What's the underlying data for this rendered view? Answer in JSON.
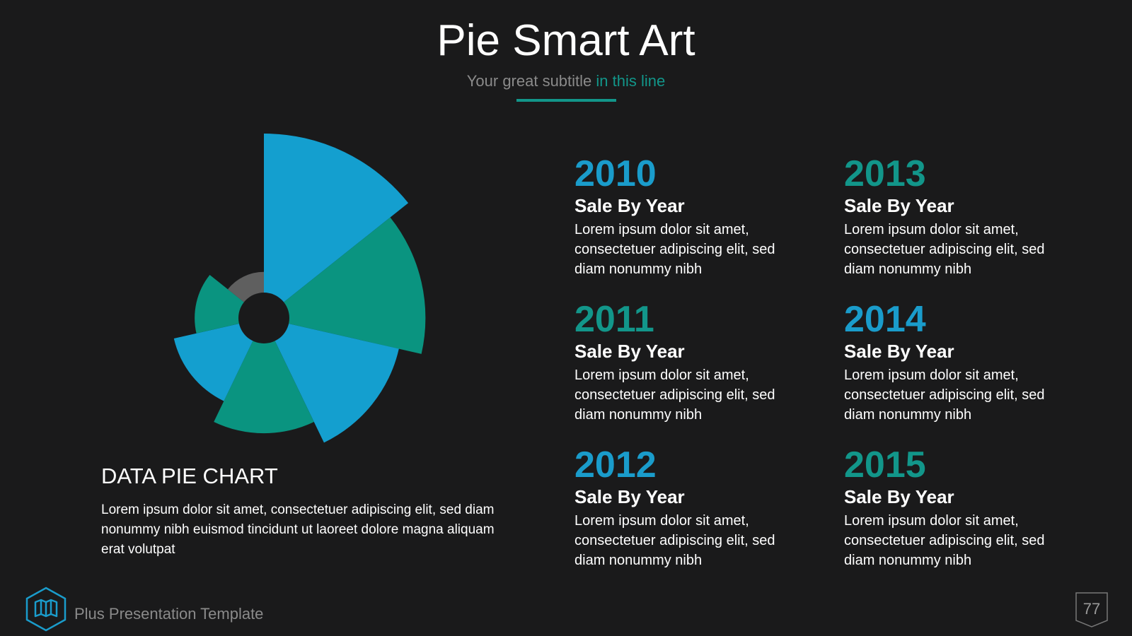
{
  "header": {
    "title": "Pie Smart Art",
    "subtitle": "Your great subtitle",
    "subtitle_accent": "in this line"
  },
  "chart_data": {
    "type": "polar-area",
    "title": "DATA PIE CHART",
    "description": "Lorem ipsum dolor sit amet, consectetuer adipiscing elit, sed diam nonummy nibh euismod tincidunt ut laoreet dolore magna aliquam erat volutpat",
    "values": [
      100,
      87.5,
      75,
      62.5,
      50,
      37.5,
      25
    ],
    "colors": [
      "#149fcf",
      "#0a9480",
      "#149fcf",
      "#0a9480",
      "#149fcf",
      "#0a9480",
      "#5f5f5f"
    ],
    "ylim": [
      0,
      100
    ]
  },
  "items": [
    {
      "year": "2010",
      "heading": "Sale By Year",
      "text": "Lorem ipsum dolor sit amet, consectetuer adipiscing elit, sed diam nonummy nibh",
      "color": "#1a9ccb"
    },
    {
      "year": "2011",
      "heading": "Sale By Year",
      "text": "Lorem ipsum dolor sit amet, consectetuer adipiscing elit, sed diam nonummy nibh",
      "color": "#12968a"
    },
    {
      "year": "2012",
      "heading": "Sale By Year",
      "text": "Lorem ipsum dolor sit amet, consectetuer adipiscing elit, sed diam nonummy nibh",
      "color": "#1a9ccb"
    },
    {
      "year": "2013",
      "heading": "Sale By Year",
      "text": "Lorem ipsum dolor sit amet, consectetuer adipiscing elit, sed diam nonummy nibh",
      "color": "#12968a"
    },
    {
      "year": "2014",
      "heading": "Sale By Year",
      "text": "Lorem ipsum dolor sit amet, consectetuer adipiscing elit, sed diam nonummy nibh",
      "color": "#1a9ccb"
    },
    {
      "year": "2015",
      "heading": "Sale By Year",
      "text": "Lorem ipsum dolor sit amet, consectetuer adipiscing elit, sed diam nonummy nibh",
      "color": "#12968a"
    }
  ],
  "footer": {
    "brand": "Plus Presentation Template",
    "page": "77"
  }
}
